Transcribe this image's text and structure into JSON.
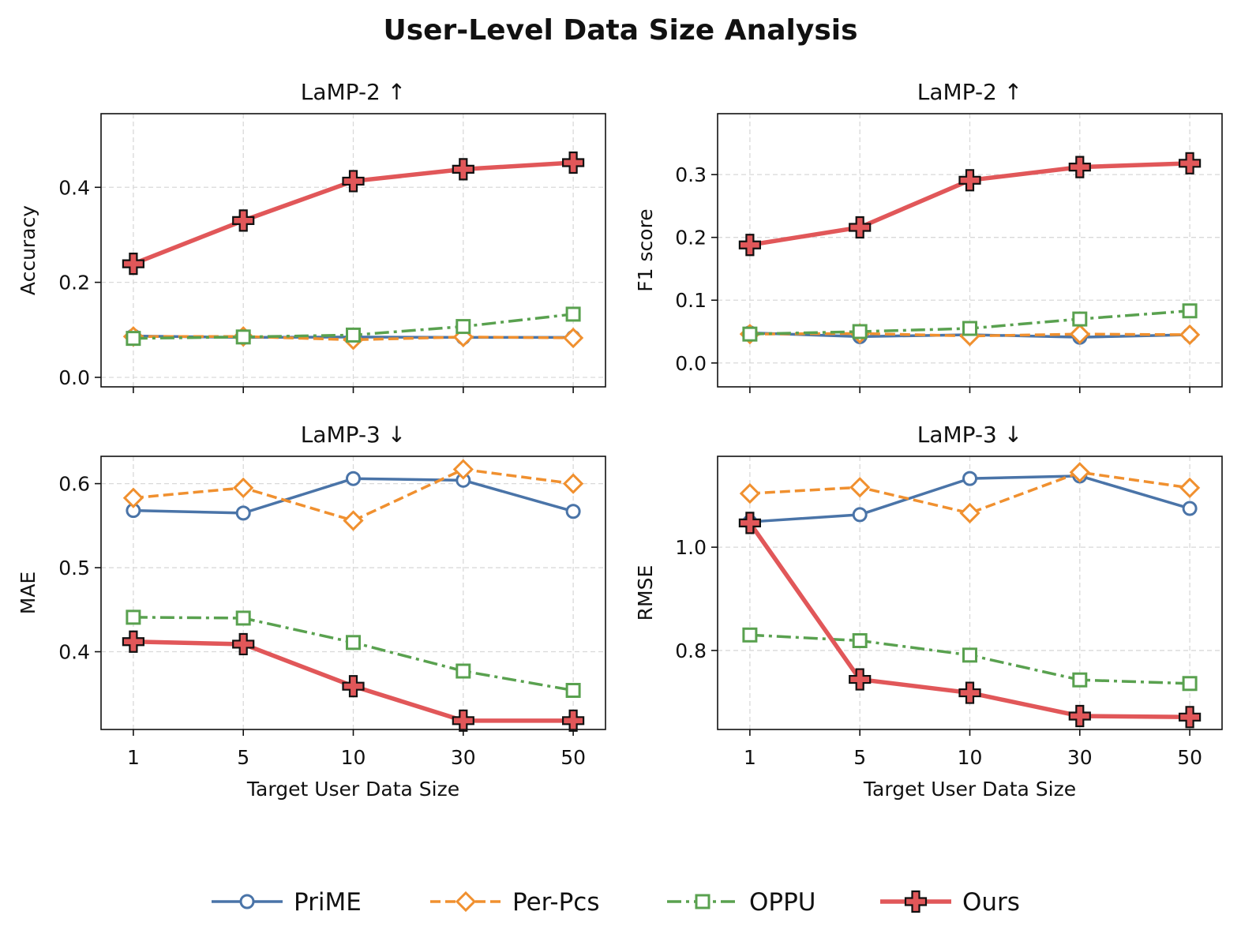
{
  "figure": {
    "title": "User-Level Data Size Analysis"
  },
  "series_styles": [
    {
      "name": "PriME",
      "color": "#4a74a8",
      "marker": "circle",
      "dash": "solid"
    },
    {
      "name": "Per-Pcs",
      "color": "#f0902f",
      "marker": "diamond",
      "dash": "dashed"
    },
    {
      "name": "OPPU",
      "color": "#59a14f",
      "marker": "square",
      "dash": "dashdot"
    },
    {
      "name": "Ours",
      "color": "#e15759",
      "marker": "plus",
      "dash": "solid"
    }
  ],
  "legend": {
    "placement": "bottom-center",
    "items": [
      "PriME",
      "Per-Pcs",
      "OPPU",
      "Ours"
    ]
  },
  "chart_data": [
    {
      "type": "line",
      "title": "LaMP-2 ↑",
      "xlabel": "",
      "ylabel": "Accuracy",
      "categories": [
        "1",
        "5",
        "10",
        "30",
        "50"
      ],
      "ylim": [
        -0.02,
        0.555
      ],
      "yticks": [
        0.0,
        0.2,
        0.4
      ],
      "ytick_labels": [
        "0.0",
        "0.2",
        "0.4"
      ],
      "grid": true,
      "series": [
        {
          "name": "PriME",
          "values": [
            0.087,
            0.084,
            0.085,
            0.084,
            0.084
          ]
        },
        {
          "name": "Per-Pcs",
          "values": [
            0.086,
            0.086,
            0.079,
            0.085,
            0.083
          ]
        },
        {
          "name": "OPPU",
          "values": [
            0.082,
            0.085,
            0.089,
            0.107,
            0.133
          ]
        },
        {
          "name": "Ours",
          "values": [
            0.239,
            0.33,
            0.413,
            0.438,
            0.452
          ]
        }
      ]
    },
    {
      "type": "line",
      "title": "LaMP-2 ↑",
      "xlabel": "",
      "ylabel": "F1 score",
      "categories": [
        "1",
        "5",
        "10",
        "30",
        "50"
      ],
      "ylim": [
        -0.038,
        0.397
      ],
      "yticks": [
        0.0,
        0.1,
        0.2,
        0.3
      ],
      "ytick_labels": [
        "0.0",
        "0.1",
        "0.2",
        "0.3"
      ],
      "grid": true,
      "series": [
        {
          "name": "PriME",
          "values": [
            0.048,
            0.042,
            0.045,
            0.041,
            0.045
          ]
        },
        {
          "name": "Per-Pcs",
          "values": [
            0.046,
            0.047,
            0.043,
            0.046,
            0.045
          ]
        },
        {
          "name": "OPPU",
          "values": [
            0.046,
            0.05,
            0.055,
            0.07,
            0.083
          ]
        },
        {
          "name": "Ours",
          "values": [
            0.188,
            0.216,
            0.291,
            0.312,
            0.318
          ]
        }
      ]
    },
    {
      "type": "line",
      "title": "LaMP-3 ↓",
      "xlabel": "Target User Data Size",
      "ylabel": "MAE",
      "categories": [
        "1",
        "5",
        "10",
        "30",
        "50"
      ],
      "ylim": [
        0.3075,
        0.6325
      ],
      "yticks": [
        0.4,
        0.5,
        0.6
      ],
      "ytick_labels": [
        "0.4",
        "0.5",
        "0.6"
      ],
      "grid": true,
      "series": [
        {
          "name": "PriME",
          "values": [
            0.568,
            0.565,
            0.606,
            0.604,
            0.567
          ]
        },
        {
          "name": "Per-Pcs",
          "values": [
            0.583,
            0.595,
            0.556,
            0.617,
            0.6
          ]
        },
        {
          "name": "OPPU",
          "values": [
            0.441,
            0.44,
            0.411,
            0.377,
            0.354
          ]
        },
        {
          "name": "Ours",
          "values": [
            0.412,
            0.409,
            0.359,
            0.318,
            0.318
          ]
        }
      ]
    },
    {
      "type": "line",
      "title": "LaMP-3 ↓",
      "xlabel": "Target User Data Size",
      "ylabel": "RMSE",
      "categories": [
        "1",
        "5",
        "10",
        "30",
        "50"
      ],
      "ylim": [
        0.647,
        1.176
      ],
      "yticks": [
        0.8,
        1.0
      ],
      "ytick_labels": [
        "0.8",
        "1.0"
      ],
      "grid": true,
      "series": [
        {
          "name": "PriME",
          "values": [
            1.049,
            1.063,
            1.133,
            1.138,
            1.075
          ]
        },
        {
          "name": "Per-Pcs",
          "values": [
            1.104,
            1.116,
            1.066,
            1.145,
            1.115
          ]
        },
        {
          "name": "OPPU",
          "values": [
            0.83,
            0.819,
            0.791,
            0.743,
            0.736
          ]
        },
        {
          "name": "Ours",
          "values": [
            1.047,
            0.744,
            0.718,
            0.673,
            0.671
          ]
        }
      ]
    }
  ]
}
